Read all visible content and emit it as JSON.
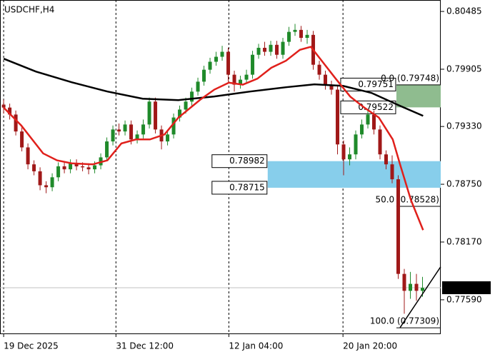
{
  "chart_data": {
    "type": "candlestick",
    "title": "USDCHF,H4",
    "up_color": "#1f8a2a",
    "down_color": "#a01818",
    "xlim": [
      -0.6,
      72
    ],
    "ylim": [
      0.77245,
      0.806
    ],
    "xticks": [
      {
        "value": 0,
        "label": "19 Dec 2025"
      },
      {
        "value": 18.5,
        "label": "31 Dec 12:00"
      },
      {
        "value": 37.1,
        "label": "12 Jan 04:00"
      },
      {
        "value": 55.9,
        "label": "20 Jan 20:00"
      }
    ],
    "yticks": [
      0.80485,
      0.79905,
      {
        "value": 0.7933,
        "label": "0.79330"
      },
      {
        "value": 0.7875,
        "label": "0.78750"
      },
      {
        "value": 0.7817,
        "label": "0.78170"
      },
      {
        "value": 0.7759,
        "label": "0.77590"
      }
    ],
    "x": [
      0,
      1,
      2,
      3,
      4,
      5,
      6,
      7,
      8,
      9,
      10,
      11,
      12,
      13,
      14,
      15,
      16,
      17,
      18,
      19,
      20,
      21,
      22,
      23,
      24,
      25,
      26,
      27,
      28,
      29,
      30,
      31,
      32,
      33,
      34,
      35,
      36,
      37,
      38,
      39,
      40,
      41,
      42,
      43,
      44,
      45,
      46,
      47,
      48,
      49,
      50,
      51,
      52,
      53,
      54,
      55,
      56,
      57,
      58,
      59,
      60,
      61,
      62,
      63,
      64,
      65,
      66,
      67,
      68,
      69
    ],
    "candles": [
      [
        0.7955,
        0.796,
        0.7946,
        0.7952
      ],
      [
        0.7952,
        0.7956,
        0.794,
        0.7945
      ],
      [
        0.7945,
        0.7949,
        0.7924,
        0.7928
      ],
      [
        0.7928,
        0.7932,
        0.7908,
        0.7912
      ],
      [
        0.7912,
        0.7916,
        0.789,
        0.7895
      ],
      [
        0.7895,
        0.7899,
        0.7884,
        0.7888
      ],
      [
        0.7888,
        0.7892,
        0.7869,
        0.7874
      ],
      [
        0.7874,
        0.7878,
        0.7866,
        0.7872
      ],
      [
        0.7872,
        0.7886,
        0.7868,
        0.7882
      ],
      [
        0.7882,
        0.7897,
        0.7878,
        0.7893
      ],
      [
        0.7893,
        0.7897,
        0.7886,
        0.789
      ],
      [
        0.789,
        0.79,
        0.7886,
        0.7896
      ],
      [
        0.7896,
        0.79,
        0.7889,
        0.7893
      ],
      [
        0.7893,
        0.7897,
        0.7888,
        0.7892
      ],
      [
        0.7892,
        0.7896,
        0.7885,
        0.789
      ],
      [
        0.789,
        0.7898,
        0.7886,
        0.7894
      ],
      [
        0.7894,
        0.7906,
        0.789,
        0.7902
      ],
      [
        0.7902,
        0.7922,
        0.7898,
        0.7918
      ],
      [
        0.7918,
        0.7934,
        0.7914,
        0.793
      ],
      [
        0.793,
        0.7936,
        0.7924,
        0.7928
      ],
      [
        0.7928,
        0.7939,
        0.7924,
        0.7935
      ],
      [
        0.7935,
        0.7939,
        0.7915,
        0.792
      ],
      [
        0.792,
        0.7929,
        0.7916,
        0.7925
      ],
      [
        0.7925,
        0.794,
        0.7921,
        0.7935
      ],
      [
        0.7935,
        0.7962,
        0.7931,
        0.7958
      ],
      [
        0.7958,
        0.7962,
        0.7926,
        0.793
      ],
      [
        0.793,
        0.7934,
        0.791,
        0.7918
      ],
      [
        0.7918,
        0.7929,
        0.7914,
        0.7925
      ],
      [
        0.7925,
        0.7946,
        0.7921,
        0.7942
      ],
      [
        0.7942,
        0.7954,
        0.7938,
        0.795
      ],
      [
        0.795,
        0.7962,
        0.7946,
        0.7958
      ],
      [
        0.7958,
        0.7972,
        0.7954,
        0.7968
      ],
      [
        0.7968,
        0.7982,
        0.7964,
        0.7978
      ],
      [
        0.7978,
        0.7994,
        0.7974,
        0.799
      ],
      [
        0.799,
        0.8002,
        0.7986,
        0.7998
      ],
      [
        0.7998,
        0.8008,
        0.7994,
        0.8003
      ],
      [
        0.8003,
        0.8014,
        0.7999,
        0.8008
      ],
      [
        0.8008,
        0.8012,
        0.7978,
        0.7985
      ],
      [
        0.7985,
        0.7989,
        0.7968,
        0.7975
      ],
      [
        0.7975,
        0.7984,
        0.7971,
        0.798
      ],
      [
        0.798,
        0.799,
        0.7976,
        0.7985
      ],
      [
        0.7985,
        0.8009,
        0.7981,
        0.8005
      ],
      [
        0.8005,
        0.8016,
        0.8001,
        0.8012
      ],
      [
        0.8012,
        0.8018,
        0.8004,
        0.8008
      ],
      [
        0.8008,
        0.8019,
        0.8004,
        0.8015
      ],
      [
        0.8015,
        0.8019,
        0.8001,
        0.8005
      ],
      [
        0.8005,
        0.8022,
        0.8001,
        0.8018
      ],
      [
        0.8018,
        0.8033,
        0.8014,
        0.8028
      ],
      [
        0.8028,
        0.8036,
        0.8024,
        0.803
      ],
      [
        0.803,
        0.8034,
        0.8018,
        0.8022
      ],
      [
        0.8022,
        0.803,
        0.8016,
        0.8025
      ],
      [
        0.8025,
        0.8029,
        0.799,
        0.7995
      ],
      [
        0.7995,
        0.7999,
        0.798,
        0.7985
      ],
      [
        0.7985,
        0.7989,
        0.797,
        0.7975
      ],
      [
        0.7975,
        0.7979,
        0.7965,
        0.797
      ],
      [
        0.797,
        0.7974,
        0.7905,
        0.7915
      ],
      [
        0.7915,
        0.7919,
        0.7884,
        0.79
      ],
      [
        0.79,
        0.7912,
        0.7894,
        0.7905
      ],
      [
        0.7905,
        0.7929,
        0.79,
        0.7925
      ],
      [
        0.7925,
        0.794,
        0.7921,
        0.7935
      ],
      [
        0.7935,
        0.795,
        0.7931,
        0.7945
      ],
      [
        0.7945,
        0.7949,
        0.7925,
        0.793
      ],
      [
        0.793,
        0.7934,
        0.79,
        0.7905
      ],
      [
        0.7905,
        0.7909,
        0.789,
        0.7895
      ],
      [
        0.7895,
        0.7904,
        0.7876,
        0.788
      ],
      [
        0.788,
        0.7884,
        0.778,
        0.7785
      ],
      [
        0.7785,
        0.779,
        0.7745,
        0.7768
      ],
      [
        0.7768,
        0.7787,
        0.776,
        0.7775
      ],
      [
        0.7775,
        0.7785,
        0.7758,
        0.7768
      ],
      [
        0.7768,
        0.7782,
        0.7762,
        0.7771
      ]
    ],
    "ma_fast": {
      "color": "#e0201b",
      "x": [
        0,
        2.9,
        6.5,
        8.8,
        11.2,
        14.7,
        17.1,
        19.4,
        21.8,
        24.1,
        26.5,
        28.8,
        32.4,
        34.7,
        37.1,
        39.4,
        41.8,
        44.1,
        46.5,
        48.8,
        50.6,
        52.4,
        54.7,
        57.1,
        59.4,
        61.8,
        64.1,
        65.3,
        67.1,
        69.1
      ],
      "values": [
        0.7952,
        0.7934,
        0.7906,
        0.7899,
        0.7896,
        0.7895,
        0.7899,
        0.7916,
        0.792,
        0.792,
        0.7925,
        0.7942,
        0.796,
        0.797,
        0.7977,
        0.7975,
        0.7981,
        0.7992,
        0.7999,
        0.801,
        0.8013,
        0.7999,
        0.7981,
        0.7963,
        0.7952,
        0.7942,
        0.792,
        0.7895,
        0.7859,
        0.7829
      ]
    },
    "ma_slow": {
      "color": "#000000",
      "x": [
        0,
        5.3,
        11.2,
        17.1,
        22.9,
        28.8,
        34.7,
        40.6,
        46.5,
        51.2,
        55.9,
        60.6,
        65.3,
        69.1
      ],
      "values": [
        0.80011,
        0.79882,
        0.79774,
        0.79681,
        0.79609,
        0.79595,
        0.79631,
        0.79681,
        0.79724,
        0.79753,
        0.79738,
        0.79667,
        0.79537,
        0.79437
      ]
    },
    "zones": [
      {
        "top": 0.79751,
        "bottom": 0.79522,
        "from": 64.7,
        "color": "#8fbc8f"
      },
      {
        "top": 0.78982,
        "bottom": 0.78715,
        "from": 43.5,
        "color": "#87ceeb"
      }
    ],
    "fib": {
      "from": 64.7,
      "levels": [
        {
          "value": 0.79748,
          "label": "0.0 (0.79748)"
        },
        {
          "value": 0.78528,
          "label": "50.0 (0.78528)"
        },
        {
          "value": 0.77309,
          "label": "100.0 (0.77309)"
        }
      ]
    },
    "trendline": {
      "x": [
        65.3,
        72
      ],
      "values": [
        0.77311,
        0.77922
      ]
    },
    "current_price": 0.77711
  }
}
